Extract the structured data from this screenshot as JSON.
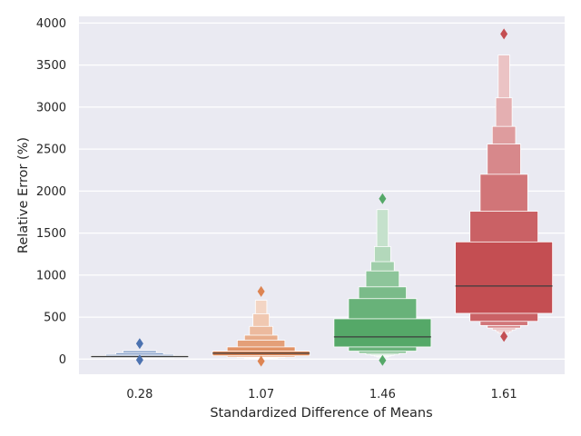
{
  "chart_data": {
    "type": "boxen",
    "title": "",
    "xlabel": "Standardized Difference of Means",
    "ylabel": "Relative Error (%)",
    "ylim": [
      -180,
      4080
    ],
    "yticks": [
      0,
      500,
      1000,
      1500,
      2000,
      2500,
      3000,
      3500,
      4000
    ],
    "grid": true,
    "categories": [
      "0.28",
      "1.07",
      "1.46",
      "1.61"
    ],
    "colors": [
      "#4c72b0",
      "#dd8452",
      "#55a868",
      "#c44e52"
    ],
    "series": [
      {
        "category": "0.28",
        "median": 30,
        "boxes": [
          {
            "low": 22,
            "high": 40
          },
          {
            "low": 15,
            "high": 55
          },
          {
            "low": 10,
            "high": 75
          },
          {
            "low": 6,
            "high": 100
          }
        ],
        "outliers": [
          185,
          -10
        ]
      },
      {
        "category": "1.07",
        "median": 70,
        "boxes": [
          {
            "low": 40,
            "high": 95
          },
          {
            "low": 25,
            "high": 145
          },
          {
            "low": 18,
            "high": 225
          },
          {
            "low": 12,
            "high": 285
          },
          {
            "low": 8,
            "high": 390
          },
          {
            "low": 5,
            "high": 540
          },
          {
            "low": 3,
            "high": 700
          }
        ],
        "outliers": [
          805,
          -25
        ]
      },
      {
        "category": "1.46",
        "median": 265,
        "boxes": [
          {
            "low": 145,
            "high": 480
          },
          {
            "low": 95,
            "high": 720
          },
          {
            "low": 70,
            "high": 860
          },
          {
            "low": 55,
            "high": 1050
          },
          {
            "low": 45,
            "high": 1160
          },
          {
            "low": 35,
            "high": 1340
          },
          {
            "low": 25,
            "high": 1780
          }
        ],
        "outliers": [
          1910,
          -15
        ]
      },
      {
        "category": "1.61",
        "median": 870,
        "boxes": [
          {
            "low": 545,
            "high": 1395
          },
          {
            "low": 450,
            "high": 1760
          },
          {
            "low": 400,
            "high": 2200
          },
          {
            "low": 370,
            "high": 2560
          },
          {
            "low": 350,
            "high": 2770
          },
          {
            "low": 330,
            "high": 3110
          },
          {
            "low": 310,
            "high": 3620
          }
        ],
        "outliers": [
          3870,
          270
        ]
      }
    ]
  }
}
